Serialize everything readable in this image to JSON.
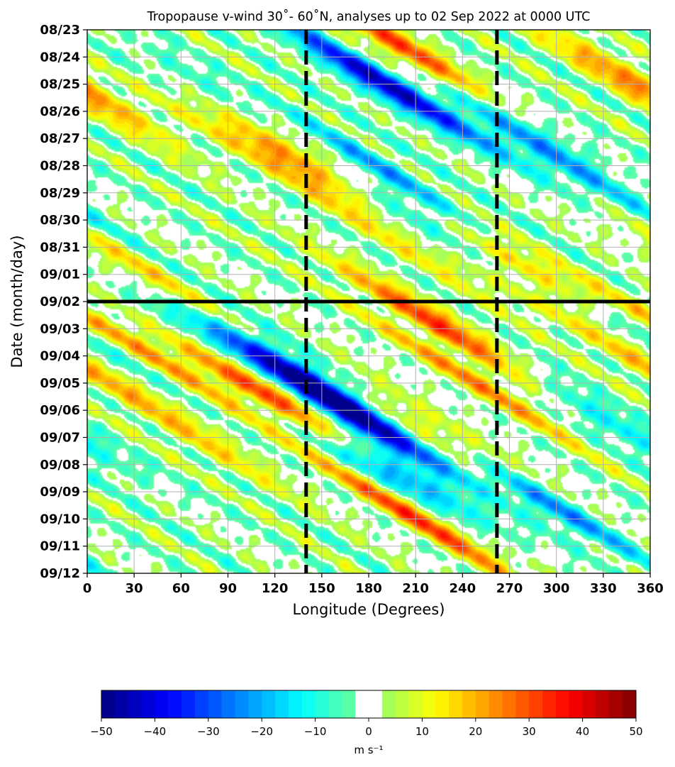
{
  "chart_data": {
    "type": "heatmap",
    "title": "Tropopause v-wind 30˚- 60˚N, analyses up to 02 Sep 2022 at 0000 UTC",
    "xlabel": "Longitude (Degrees)",
    "ylabel": "Date (month/day)",
    "x_ticks": [
      "0",
      "30",
      "60",
      "90",
      "120",
      "150",
      "180",
      "210",
      "240",
      "270",
      "300",
      "330",
      "360"
    ],
    "x_range": [
      0,
      360
    ],
    "y_ticks": [
      "08/23",
      "08/24",
      "08/25",
      "08/26",
      "08/27",
      "08/28",
      "08/29",
      "08/30",
      "08/31",
      "09/01",
      "09/02",
      "09/03",
      "09/04",
      "09/05",
      "09/06",
      "09/07",
      "09/08",
      "09/09",
      "09/10",
      "09/11",
      "09/12"
    ],
    "grid": true,
    "analysis_line_date": "09/02",
    "dashed_line_longitudes": [
      140,
      262
    ],
    "colorbar": {
      "label": "m s⁻¹",
      "range": [
        -50,
        50
      ],
      "step": 2.5,
      "ticks": [
        "−50",
        "−40",
        "−30",
        "−20",
        "−10",
        "0",
        "10",
        "20",
        "30",
        "40",
        "50"
      ],
      "white_band": [
        -2.5,
        2.5
      ]
    },
    "wave_packets": [
      {
        "lon": 140,
        "date": "08/27",
        "value": 36
      },
      {
        "lon": 135,
        "date": "08/28",
        "value": 38
      },
      {
        "lon": 130,
        "date": "09/06",
        "value": 35
      },
      {
        "lon": 120,
        "date": "09/05",
        "value": 30
      },
      {
        "lon": 160,
        "date": "09/06",
        "value": -42
      },
      {
        "lon": 150,
        "date": "09/05",
        "value": -35
      },
      {
        "lon": 190,
        "date": "08/25",
        "value": -40
      },
      {
        "lon": 180,
        "date": "08/28",
        "value": -32
      },
      {
        "lon": 200,
        "date": "08/30",
        "value": -38
      },
      {
        "lon": 185,
        "date": "09/08",
        "value": -38
      },
      {
        "lon": 210,
        "date": "08/24",
        "value": 38
      },
      {
        "lon": 220,
        "date": "08/31",
        "value": 28
      },
      {
        "lon": 230,
        "date": "09/03",
        "value": 32
      },
      {
        "lon": 225,
        "date": "09/07",
        "value": 30
      },
      {
        "lon": 215,
        "date": "09/10",
        "value": 30
      },
      {
        "lon": 105,
        "date": "08/26",
        "value": -25
      },
      {
        "lon": 95,
        "date": "09/04",
        "value": -25
      },
      {
        "lon": 280,
        "date": "09/09",
        "value": -30
      },
      {
        "lon": 290,
        "date": "09/01",
        "value": 27
      },
      {
        "lon": 340,
        "date": "09/03",
        "value": -25
      },
      {
        "lon": 350,
        "date": "08/25",
        "value": 25
      },
      {
        "lon": 355,
        "date": "09/04",
        "value": 22
      },
      {
        "lon": 35,
        "date": "09/01",
        "value": 15
      },
      {
        "lon": 45,
        "date": "09/04",
        "value": 17
      },
      {
        "lon": 265,
        "date": "08/26",
        "value": -22
      },
      {
        "lon": 320,
        "date": "09/06",
        "value": -18
      },
      {
        "lon": 300,
        "date": "08/28",
        "value": -15
      },
      {
        "lon": 70,
        "date": "09/07",
        "value": 12
      },
      {
        "lon": 250,
        "date": "09/05",
        "value": 18
      }
    ]
  }
}
